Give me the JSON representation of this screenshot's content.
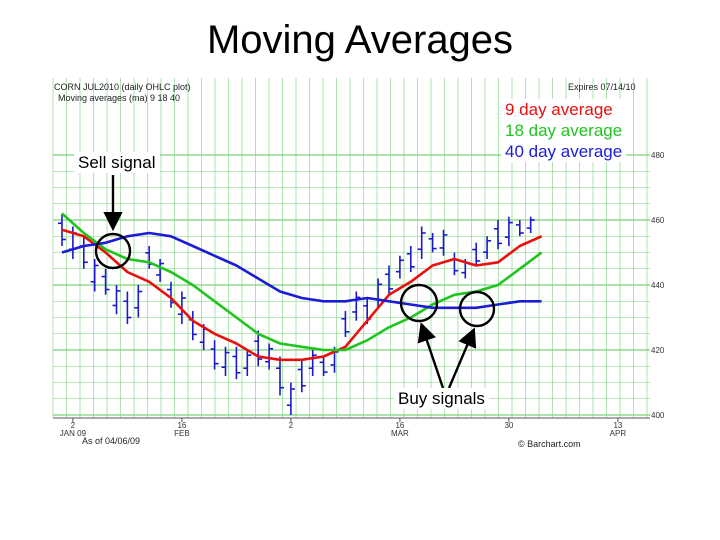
{
  "slide_title": "Moving Averages",
  "header": {
    "symbol_line": "CORN JUL2010 (daily OHLC plot)",
    "ma_line": "Moving averages (ma) 9 18 40",
    "expires": "Expires 07/14/10"
  },
  "annotations": {
    "sell_label": "Sell signal",
    "buy_label": "Buy signals"
  },
  "footer": {
    "as_of": "As of 04/06/09",
    "credit": "© Barchart.com"
  },
  "colors": {
    "ma9": "#e8100e",
    "ma18": "#1fc41f",
    "ma40": "#1c1cd6",
    "bars": "#1a1acd",
    "grid": "#7ad17a"
  },
  "chart_data": {
    "type": "line",
    "title": "Moving Averages",
    "ylim": [
      400,
      480
    ],
    "yticks": [
      {
        "v": 480,
        "label": "480"
      },
      {
        "v": 460,
        "label": "460"
      },
      {
        "v": 440,
        "label": "440"
      },
      {
        "v": 420,
        "label": "420"
      },
      {
        "v": 400,
        "label": "400"
      }
    ],
    "xticks": [
      {
        "i": 1,
        "day": "2",
        "month": "JAN 09"
      },
      {
        "i": 11,
        "day": "16",
        "month": "FEB"
      },
      {
        "i": 21,
        "day": "2",
        "month": ""
      },
      {
        "i": 31,
        "day": "16",
        "month": "MAR"
      },
      {
        "i": 41,
        "day": "30",
        "month": ""
      },
      {
        "i": 51,
        "day": "13",
        "month": "APR"
      }
    ],
    "series": [
      {
        "name": "9 day average",
        "color": "#e8100e",
        "values": [
          [
            0,
            457
          ],
          [
            2,
            455
          ],
          [
            4,
            450
          ],
          [
            6,
            444
          ],
          [
            8,
            441
          ],
          [
            10,
            436
          ],
          [
            12,
            429
          ],
          [
            14,
            425
          ],
          [
            16,
            422
          ],
          [
            18,
            418
          ],
          [
            20,
            417
          ],
          [
            22,
            417
          ],
          [
            24,
            418
          ],
          [
            26,
            421
          ],
          [
            28,
            429
          ],
          [
            30,
            437
          ],
          [
            32,
            441
          ],
          [
            34,
            446
          ],
          [
            36,
            448
          ],
          [
            38,
            446
          ],
          [
            40,
            447
          ],
          [
            42,
            452
          ],
          [
            44,
            455
          ]
        ]
      },
      {
        "name": "18 day average",
        "color": "#1fc41f",
        "values": [
          [
            0,
            462
          ],
          [
            2,
            456
          ],
          [
            4,
            451
          ],
          [
            6,
            448
          ],
          [
            8,
            447
          ],
          [
            10,
            444
          ],
          [
            12,
            440
          ],
          [
            14,
            435
          ],
          [
            16,
            430
          ],
          [
            18,
            425
          ],
          [
            20,
            422
          ],
          [
            22,
            421
          ],
          [
            24,
            420
          ],
          [
            26,
            420
          ],
          [
            28,
            423
          ],
          [
            30,
            427
          ],
          [
            32,
            430
          ],
          [
            34,
            434
          ],
          [
            36,
            437
          ],
          [
            38,
            438
          ],
          [
            40,
            440
          ],
          [
            42,
            445
          ],
          [
            44,
            450
          ]
        ]
      },
      {
        "name": "40 day average",
        "color": "#1c1cd6",
        "values": [
          [
            0,
            450
          ],
          [
            2,
            452
          ],
          [
            4,
            453
          ],
          [
            6,
            455
          ],
          [
            8,
            456
          ],
          [
            10,
            455
          ],
          [
            12,
            452
          ],
          [
            14,
            449
          ],
          [
            16,
            446
          ],
          [
            18,
            442
          ],
          [
            20,
            438
          ],
          [
            22,
            436
          ],
          [
            24,
            435
          ],
          [
            26,
            435
          ],
          [
            28,
            436
          ],
          [
            30,
            435
          ],
          [
            32,
            434
          ],
          [
            34,
            433
          ],
          [
            36,
            433
          ],
          [
            38,
            433
          ],
          [
            40,
            434
          ],
          [
            42,
            435
          ],
          [
            44,
            435
          ]
        ]
      }
    ],
    "ohlc": [
      [
        0,
        462,
        452
      ],
      [
        1,
        458,
        448
      ],
      [
        2,
        455,
        445
      ],
      [
        3,
        448,
        438
      ],
      [
        4,
        445,
        437
      ],
      [
        5,
        440,
        431
      ],
      [
        6,
        438,
        428
      ],
      [
        7,
        440,
        430
      ],
      [
        8,
        452,
        445
      ],
      [
        9,
        448,
        441
      ],
      [
        10,
        441,
        433
      ],
      [
        11,
        438,
        428
      ],
      [
        12,
        432,
        423
      ],
      [
        13,
        428,
        420
      ],
      [
        14,
        423,
        414
      ],
      [
        15,
        421,
        412
      ],
      [
        16,
        421,
        411
      ],
      [
        17,
        420,
        412
      ],
      [
        18,
        426,
        415
      ],
      [
        19,
        422,
        414
      ],
      [
        20,
        418,
        406
      ],
      [
        21,
        410,
        400
      ],
      [
        22,
        417,
        407
      ],
      [
        23,
        420,
        412
      ],
      [
        24,
        418,
        412
      ],
      [
        25,
        421,
        413
      ],
      [
        26,
        432,
        424
      ],
      [
        27,
        438,
        429
      ],
      [
        28,
        436,
        428
      ],
      [
        29,
        442,
        433
      ],
      [
        30,
        446,
        437
      ],
      [
        31,
        449,
        442
      ],
      [
        32,
        452,
        444
      ],
      [
        33,
        458,
        448
      ],
      [
        34,
        456,
        450
      ],
      [
        35,
        457,
        449
      ],
      [
        36,
        450,
        443
      ],
      [
        37,
        448,
        442
      ],
      [
        38,
        453,
        446
      ],
      [
        39,
        455,
        448
      ],
      [
        40,
        460,
        451
      ],
      [
        41,
        461,
        452
      ],
      [
        42,
        460,
        455
      ],
      [
        43,
        461,
        456
      ]
    ]
  }
}
